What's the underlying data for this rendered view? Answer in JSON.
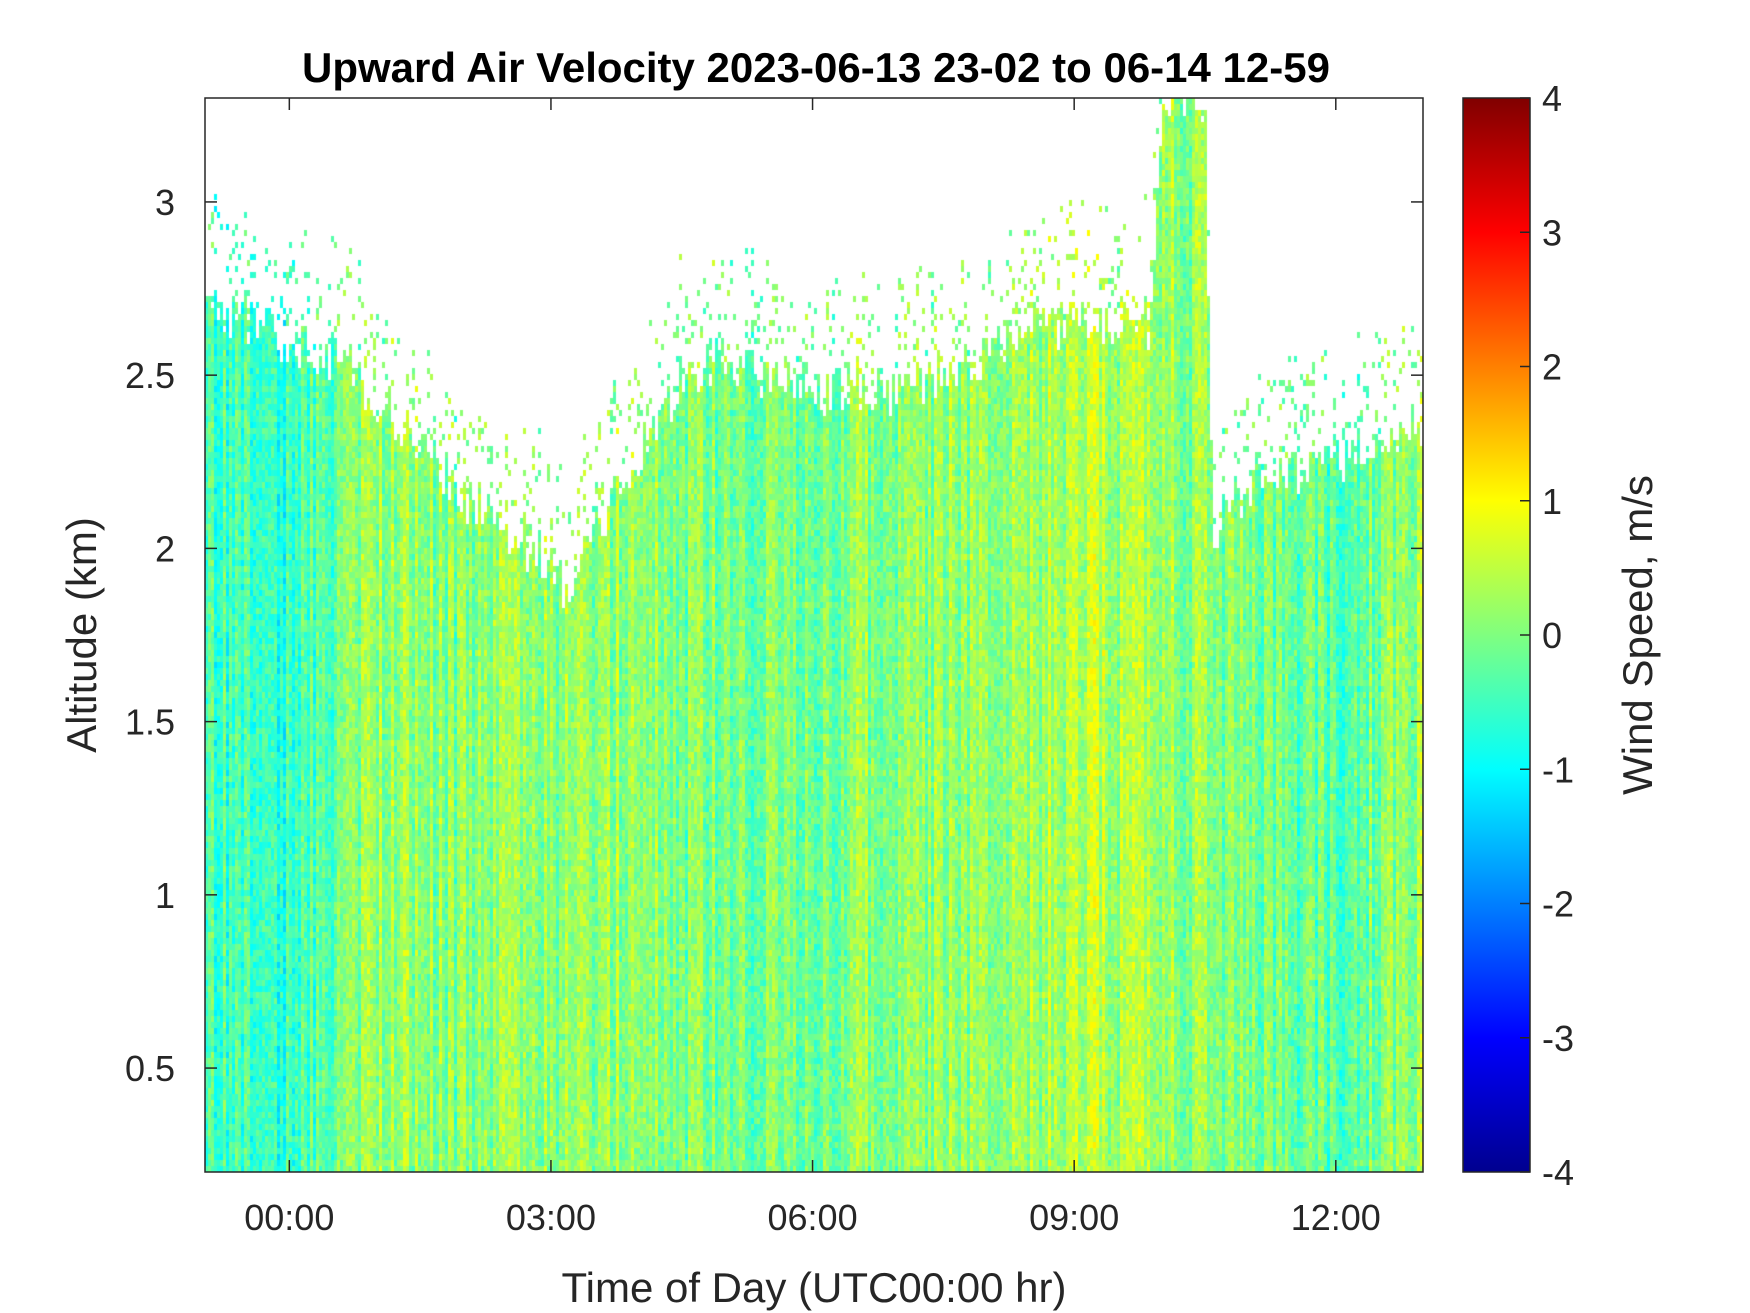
{
  "chart_data": {
    "type": "heatmap",
    "title": "Upward Air Velocity 2023-06-13 23-02 to 06-14 12-59",
    "xlabel": "Time of Day (UTC00:00 hr)",
    "ylabel": "Altitude (km)",
    "colorbar_label": "Wind Speed, m/s",
    "colormap": "jet",
    "x_unit": "hours relative to 2023-06-14 00:00 UTC",
    "xlim": [
      -0.967,
      13.0
    ],
    "ylim": [
      0.2,
      3.3
    ],
    "clim": [
      -4,
      4
    ],
    "x_ticks": [
      0,
      3,
      6,
      9,
      12
    ],
    "x_tick_labels": [
      "00:00",
      "03:00",
      "06:00",
      "09:00",
      "12:00"
    ],
    "y_ticks": [
      0.5,
      1,
      1.5,
      2,
      2.5,
      3
    ],
    "y_tick_labels": [
      "0.5",
      "1",
      "1.5",
      "2",
      "2.5",
      "3"
    ],
    "colorbar_ticks": [
      -4,
      -3,
      -2,
      -1,
      0,
      1,
      2,
      3,
      4
    ],
    "colorbar_tick_labels": [
      "-4",
      "-3",
      "-2",
      "-1",
      "0",
      "1",
      "2",
      "3",
      "4"
    ],
    "data_top_altitude_km": {
      "x": [
        -0.967,
        -0.5,
        0.5,
        1.0,
        1.5,
        2.0,
        2.5,
        3.0,
        3.2,
        3.5,
        4.0,
        4.5,
        5.0,
        6.0,
        7.0,
        8.0,
        8.5,
        9.0,
        9.5,
        9.9,
        10.0,
        10.5,
        10.6,
        11.0,
        12.0,
        13.0
      ],
      "y": [
        2.7,
        2.65,
        2.55,
        2.45,
        2.3,
        2.15,
        2.05,
        1.95,
        1.85,
        2.05,
        2.25,
        2.5,
        2.55,
        2.45,
        2.45,
        2.55,
        2.65,
        2.65,
        2.65,
        2.65,
        3.3,
        3.3,
        2.05,
        2.2,
        2.25,
        2.35
      ]
    },
    "mean_velocity_profile_by_time": {
      "x": [
        -0.967,
        0.0,
        1.0,
        2.0,
        3.0,
        4.0,
        5.0,
        6.0,
        7.0,
        8.0,
        9.0,
        10.0,
        11.0,
        12.0,
        13.0
      ],
      "values": [
        -0.4,
        -0.6,
        0.2,
        0.0,
        0.1,
        0.2,
        -0.1,
        0.0,
        0.1,
        0.1,
        0.4,
        0.2,
        0.0,
        -0.3,
        0.3
      ]
    },
    "grid": false
  }
}
